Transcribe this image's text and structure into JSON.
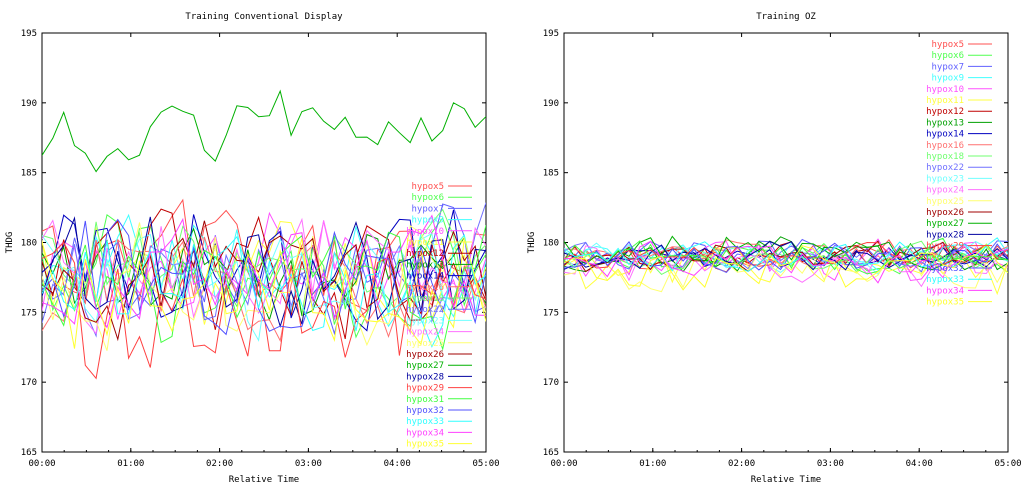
{
  "chart_data": [
    {
      "type": "line",
      "title": "Training Conventional Display",
      "xlabel": "Relative Time",
      "ylabel": "THDG",
      "xlim": [
        0,
        5
      ],
      "ylim": [
        165,
        195
      ],
      "xticks": [
        0,
        1,
        2,
        3,
        4,
        5
      ],
      "xtick_labels": [
        "00:00",
        "01:00",
        "02:00",
        "03:00",
        "04:00",
        "05:00"
      ],
      "yticks": [
        165,
        170,
        175,
        180,
        185,
        190,
        195
      ],
      "legend_position": "right",
      "n_points": 42,
      "series": [
        {
          "name": "hypox5",
          "color": "#ff5050",
          "mean": 178,
          "amp": 3.6,
          "seed": 5
        },
        {
          "name": "hypox6",
          "color": "#50ff50",
          "mean": 178,
          "amp": 3.4,
          "seed": 6
        },
        {
          "name": "hypox7",
          "color": "#6060ff",
          "mean": 178,
          "amp": 3.5,
          "seed": 7
        },
        {
          "name": "hypox9",
          "color": "#40ffff",
          "mean": 178,
          "amp": 3.2,
          "seed": 9
        },
        {
          "name": "hypox10",
          "color": "#ff50ff",
          "mean": 178,
          "amp": 3.4,
          "seed": 10
        },
        {
          "name": "hypox11",
          "color": "#ffff40",
          "mean": 178,
          "amp": 3.3,
          "seed": 11
        },
        {
          "name": "hypox12",
          "color": "#c00000",
          "mean": 178,
          "amp": 3.5,
          "seed": 12
        },
        {
          "name": "hypox13",
          "color": "#00a000",
          "mean": 178,
          "amp": 3.0,
          "seed": 13
        },
        {
          "name": "hypox14",
          "color": "#0000c0",
          "mean": 178,
          "amp": 3.5,
          "seed": 14
        },
        {
          "name": "hypox16",
          "color": "#ff7070",
          "mean": 177,
          "amp": 3.4,
          "seed": 16
        },
        {
          "name": "hypox18",
          "color": "#70ff70",
          "mean": 178,
          "amp": 3.3,
          "seed": 18
        },
        {
          "name": "hypox22",
          "color": "#7070ff",
          "mean": 178,
          "amp": 3.4,
          "seed": 22
        },
        {
          "name": "hypox23",
          "color": "#70ffff",
          "mean": 177,
          "amp": 3.2,
          "seed": 23
        },
        {
          "name": "hypox24",
          "color": "#ff70ff",
          "mean": 178,
          "amp": 3.6,
          "seed": 24
        },
        {
          "name": "hypox25",
          "color": "#ffff70",
          "mean": 177,
          "amp": 3.5,
          "seed": 25
        },
        {
          "name": "hypox26",
          "color": "#a00000",
          "mean": 178,
          "amp": 3.4,
          "seed": 26
        },
        {
          "name": "hypox27",
          "color": "#00b000",
          "mean": 188,
          "amp": 2.3,
          "seed": 27
        },
        {
          "name": "hypox28",
          "color": "#0000a0",
          "mean": 178,
          "amp": 3.5,
          "seed": 28
        },
        {
          "name": "hypox29",
          "color": "#ff4040",
          "mean": 175,
          "amp": 4.0,
          "seed": 29
        },
        {
          "name": "hypox31",
          "color": "#40ff40",
          "mean": 177,
          "amp": 3.4,
          "seed": 31
        },
        {
          "name": "hypox32",
          "color": "#5050ff",
          "mean": 178,
          "amp": 3.3,
          "seed": 32
        },
        {
          "name": "hypox33",
          "color": "#30ffff",
          "mean": 177,
          "amp": 3.4,
          "seed": 33
        },
        {
          "name": "hypox34",
          "color": "#ff40ff",
          "mean": 178,
          "amp": 3.5,
          "seed": 34
        },
        {
          "name": "hypox35",
          "color": "#ffff30",
          "mean": 177,
          "amp": 3.6,
          "seed": 35
        }
      ]
    },
    {
      "type": "line",
      "title": "Training OZ",
      "xlabel": "Relative Time",
      "ylabel": "THDG",
      "xlim": [
        0,
        5
      ],
      "ylim": [
        165,
        195
      ],
      "xticks": [
        0,
        1,
        2,
        3,
        4,
        5
      ],
      "xtick_labels": [
        "00:00",
        "01:00",
        "02:00",
        "03:00",
        "04:00",
        "05:00"
      ],
      "yticks": [
        165,
        170,
        175,
        180,
        185,
        190,
        195
      ],
      "legend_position": "top-right",
      "n_points": 42,
      "series": [
        {
          "name": "hypox5",
          "color": "#ff5050",
          "mean": 179,
          "amp": 0.9,
          "seed": 105
        },
        {
          "name": "hypox6",
          "color": "#50ff50",
          "mean": 179,
          "amp": 0.9,
          "seed": 106
        },
        {
          "name": "hypox7",
          "color": "#6060ff",
          "mean": 179,
          "amp": 1.0,
          "seed": 107
        },
        {
          "name": "hypox9",
          "color": "#40ffff",
          "mean": 179,
          "amp": 0.9,
          "seed": 109
        },
        {
          "name": "hypox10",
          "color": "#ff50ff",
          "mean": 178.8,
          "amp": 1.4,
          "seed": 110
        },
        {
          "name": "hypox11",
          "color": "#ffff40",
          "mean": 178,
          "amp": 1.4,
          "seed": 111
        },
        {
          "name": "hypox12",
          "color": "#c00000",
          "mean": 179,
          "amp": 0.9,
          "seed": 112
        },
        {
          "name": "hypox13",
          "color": "#00a000",
          "mean": 179,
          "amp": 1.0,
          "seed": 113
        },
        {
          "name": "hypox14",
          "color": "#0000c0",
          "mean": 179,
          "amp": 0.8,
          "seed": 114
        },
        {
          "name": "hypox16",
          "color": "#ff7070",
          "mean": 179,
          "amp": 0.9,
          "seed": 116
        },
        {
          "name": "hypox18",
          "color": "#70ff70",
          "mean": 179,
          "amp": 0.9,
          "seed": 118
        },
        {
          "name": "hypox22",
          "color": "#7070ff",
          "mean": 179,
          "amp": 0.9,
          "seed": 122
        },
        {
          "name": "hypox23",
          "color": "#70ffff",
          "mean": 179,
          "amp": 0.9,
          "seed": 123
        },
        {
          "name": "hypox24",
          "color": "#ff70ff",
          "mean": 178.5,
          "amp": 1.3,
          "seed": 124
        },
        {
          "name": "hypox25",
          "color": "#ffff70",
          "mean": 178,
          "amp": 1.3,
          "seed": 125
        },
        {
          "name": "hypox26",
          "color": "#a00000",
          "mean": 179,
          "amp": 0.9,
          "seed": 126
        },
        {
          "name": "hypox27",
          "color": "#00b000",
          "mean": 179.3,
          "amp": 1.0,
          "seed": 127
        },
        {
          "name": "hypox28",
          "color": "#0000a0",
          "mean": 179,
          "amp": 0.8,
          "seed": 128
        },
        {
          "name": "hypox29",
          "color": "#ff4040",
          "mean": 179,
          "amp": 0.9,
          "seed": 129
        },
        {
          "name": "hypox31",
          "color": "#40ff40",
          "mean": 179,
          "amp": 0.9,
          "seed": 131
        },
        {
          "name": "hypox32",
          "color": "#5050ff",
          "mean": 179,
          "amp": 0.9,
          "seed": 132
        },
        {
          "name": "hypox33",
          "color": "#30ffff",
          "mean": 179,
          "amp": 0.9,
          "seed": 133
        },
        {
          "name": "hypox34",
          "color": "#ff40ff",
          "mean": 178.6,
          "amp": 1.2,
          "seed": 134
        },
        {
          "name": "hypox35",
          "color": "#ffff30",
          "mean": 178,
          "amp": 1.3,
          "seed": 135
        }
      ]
    }
  ]
}
